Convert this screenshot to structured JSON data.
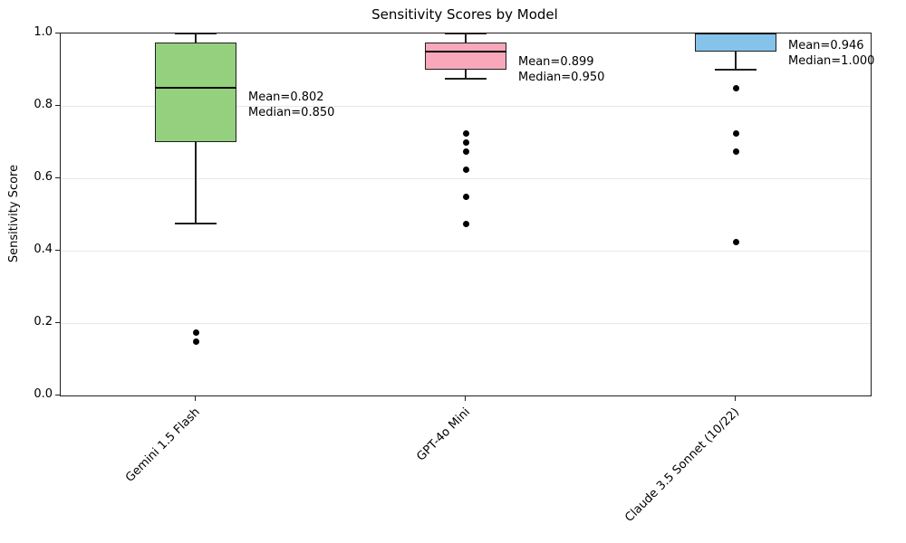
{
  "chart_data": {
    "type": "boxplot",
    "title": "Sensitivity Scores by Model",
    "xlabel": "",
    "ylabel": "Sensitivity Score",
    "ylim": [
      0.0,
      1.0
    ],
    "ytick_labels": [
      "0.0",
      "0.2",
      "0.4",
      "0.6",
      "0.8",
      "1.0"
    ],
    "ytick_values": [
      0.0,
      0.2,
      0.4,
      0.6,
      0.8,
      1.0
    ],
    "grid": "horizontal-light",
    "legend": "none",
    "categories": [
      "Gemini 1.5 Flash",
      "GPT-4o Mini",
      "Claude 3.5 Sonnet (10/22)"
    ],
    "colors": {
      "boxes": [
        "#94d07e",
        "#f9a8bb",
        "#85c3ea"
      ],
      "edge": "#1f1f1f",
      "grid": "#e8e8e8",
      "outlier": "#000000"
    },
    "series": [
      {
        "name": "Gemini 1.5 Flash",
        "box_color": "#94d07e",
        "q1": 0.7,
        "median": 0.85,
        "q3": 0.975,
        "whisker_low": 0.475,
        "whisker_high": 1.0,
        "outliers": [
          0.175,
          0.15
        ],
        "mean": 0.802,
        "mean_label": "Mean=0.802",
        "median_label": "Median=0.850"
      },
      {
        "name": "GPT-4o Mini",
        "box_color": "#f9a8bb",
        "q1": 0.9,
        "median": 0.95,
        "q3": 0.975,
        "whisker_low": 0.875,
        "whisker_high": 1.0,
        "outliers": [
          0.725,
          0.7,
          0.675,
          0.625,
          0.55,
          0.475
        ],
        "mean": 0.899,
        "mean_label": "Mean=0.899",
        "median_label": "Median=0.950"
      },
      {
        "name": "Claude 3.5 Sonnet (10/22)",
        "box_color": "#85c3ea",
        "q1": 0.95,
        "median": 1.0,
        "q3": 1.0,
        "whisker_low": 0.9,
        "whisker_high": 1.0,
        "outliers": [
          0.85,
          0.725,
          0.675,
          0.425
        ],
        "mean": 0.946,
        "mean_label": "Mean=0.946",
        "median_label": "Median=1.000"
      }
    ]
  }
}
